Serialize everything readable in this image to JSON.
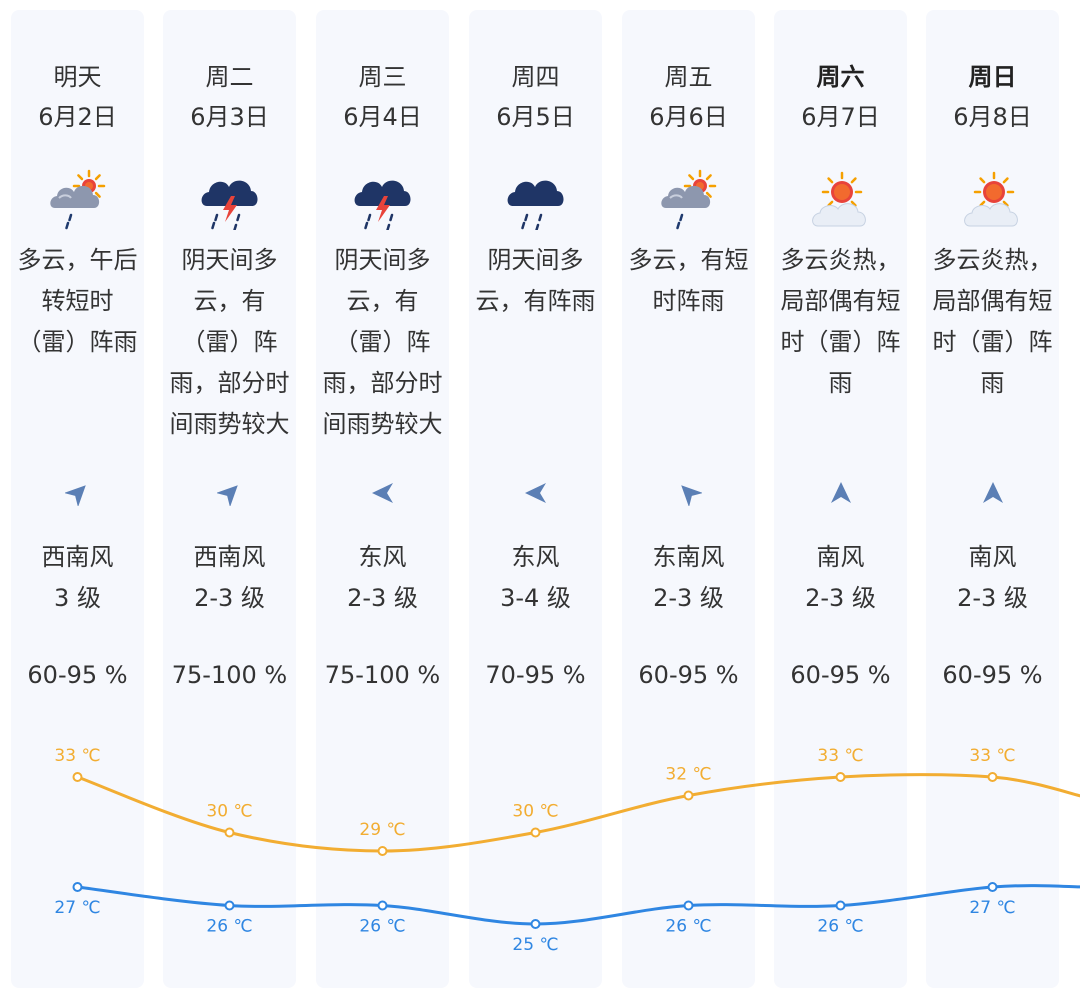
{
  "colors": {
    "high": "#f2ad32",
    "low": "#2f86e2",
    "column_bg": "#f6f8fd",
    "text": "#333333",
    "arrow": "#5b7fb5"
  },
  "days": [
    {
      "day": "明天",
      "date": "6月2日",
      "icon": "cloudy-sun-rain-icon",
      "desc": [
        "多云，午后",
        "转短时",
        "（雷）阵雨"
      ],
      "wind_dir_deg": 45,
      "wind_name": "西南风",
      "wind_level": "3 级",
      "humidity": "60-95 %",
      "weekend": false
    },
    {
      "day": "周二",
      "date": "6月3日",
      "icon": "thunderstorm-icon",
      "desc": [
        "阴天间多",
        "云，有",
        "（雷）阵",
        "雨，部分时",
        "间雨势较大"
      ],
      "wind_dir_deg": 45,
      "wind_name": "西南风",
      "wind_level": "2-3 级",
      "humidity": "75-100 %",
      "weekend": false
    },
    {
      "day": "周三",
      "date": "6月4日",
      "icon": "thunderstorm-icon",
      "desc": [
        "阴天间多",
        "云，有",
        "（雷）阵",
        "雨，部分时",
        "间雨势较大"
      ],
      "wind_dir_deg": 270,
      "wind_name": "东风",
      "wind_level": "2-3 级",
      "humidity": "75-100 %",
      "weekend": false
    },
    {
      "day": "周四",
      "date": "6月5日",
      "icon": "rain-cloud-icon",
      "desc": [
        "阴天间多",
        "云，有阵雨"
      ],
      "wind_dir_deg": 270,
      "wind_name": "东风",
      "wind_level": "3-4 级",
      "humidity": "70-95 %",
      "weekend": false
    },
    {
      "day": "周五",
      "date": "6月6日",
      "icon": "cloudy-sun-rain-icon",
      "desc": [
        "多云，有短",
        "时阵雨"
      ],
      "wind_dir_deg": 315,
      "wind_name": "东南风",
      "wind_level": "2-3 级",
      "humidity": "60-95 %",
      "weekend": false
    },
    {
      "day": "周六",
      "date": "6月7日",
      "icon": "sun-cloud-icon",
      "desc": [
        "多云炎热，",
        "局部偶有短",
        "时（雷）阵",
        "雨"
      ],
      "wind_dir_deg": 0,
      "wind_name": "南风",
      "wind_level": "2-3 级",
      "humidity": "60-95 %",
      "weekend": true
    },
    {
      "day": "周日",
      "date": "6月8日",
      "icon": "sun-cloud-icon",
      "desc": [
        "多云炎热，",
        "局部偶有短",
        "时（雷）阵",
        "雨"
      ],
      "wind_dir_deg": 0,
      "wind_name": "南风",
      "wind_level": "2-3 级",
      "humidity": "60-95 %",
      "weekend": true
    }
  ],
  "chart_data": {
    "type": "line",
    "categories": [
      "6月2日",
      "6月3日",
      "6月4日",
      "6月5日",
      "6月6日",
      "6月7日",
      "6月8日"
    ],
    "unit": "℃",
    "series": [
      {
        "values": [
          33,
          30,
          29,
          30,
          32,
          33,
          33
        ]
      },
      {
        "values": [
          27,
          26,
          26,
          25,
          26,
          26,
          27
        ]
      }
    ]
  }
}
